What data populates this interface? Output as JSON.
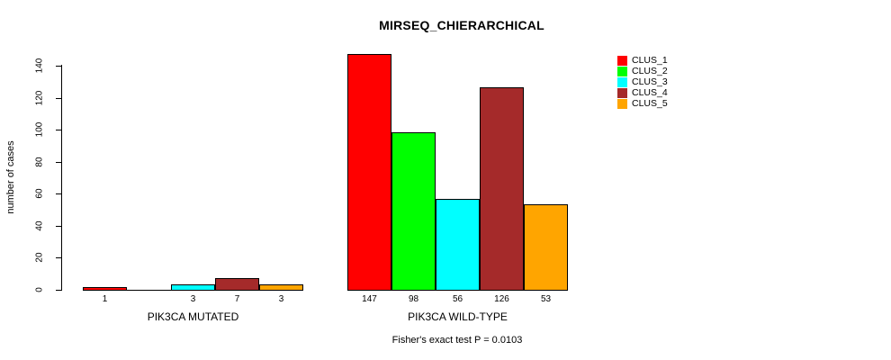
{
  "chart_data": {
    "type": "bar",
    "title": "MIRSEQ_CHIERARCHICAL",
    "ylabel": "number of cases",
    "ylim": [
      0,
      140
    ],
    "yticks": [
      0,
      20,
      40,
      60,
      80,
      100,
      120,
      140
    ],
    "grid": false,
    "legend_position": "top-right",
    "categories": [
      "PIK3CA MUTATED",
      "PIK3CA WILD-TYPE"
    ],
    "series": [
      {
        "name": "CLUS_1",
        "color": "#ff0000",
        "values": [
          1,
          147
        ]
      },
      {
        "name": "CLUS_2",
        "color": "#00ff00",
        "values": [
          0,
          98
        ]
      },
      {
        "name": "CLUS_3",
        "color": "#00ffff",
        "values": [
          3,
          56
        ]
      },
      {
        "name": "CLUS_4",
        "color": "#a52a2a",
        "values": [
          7,
          126
        ]
      },
      {
        "name": "CLUS_5",
        "color": "#ffa500",
        "values": [
          3,
          53
        ]
      }
    ],
    "bar_value_labels": [
      [
        "1",
        "",
        "3",
        "7",
        "3"
      ],
      [
        "147",
        "98",
        "56",
        "126",
        "53"
      ]
    ],
    "annotation": "Fisher's exact test P = 0.0103"
  }
}
